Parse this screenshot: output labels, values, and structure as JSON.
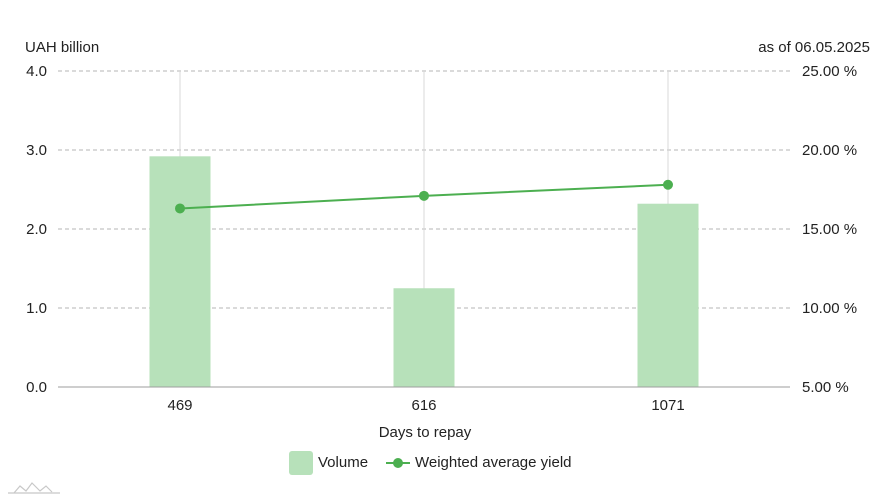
{
  "chart_data": {
    "type": "bar",
    "left_axis_unit": "UAH billion",
    "as_of": "as of 06.05.2025",
    "xlabel": "Days to repay",
    "categories": [
      "469",
      "616",
      "1071"
    ],
    "y_left": {
      "lim": [
        0,
        4
      ],
      "ticks": [
        0,
        1,
        2,
        3,
        4
      ],
      "tick_labels": [
        "0.0",
        "1.0",
        "2.0",
        "3.0",
        "4.0"
      ]
    },
    "y_right": {
      "lim": [
        5,
        25
      ],
      "ticks": [
        5,
        10,
        15,
        20,
        25
      ],
      "tick_labels": [
        "5.00 %",
        "10.00 %",
        "15.00 %",
        "20.00 %",
        "25.00 %"
      ]
    },
    "series": [
      {
        "name": "Volume",
        "kind": "bar",
        "axis": "left",
        "color": "#b7e1ba",
        "values": [
          2.92,
          1.25,
          2.32
        ]
      },
      {
        "name": "Weighted average yield",
        "kind": "line",
        "axis": "right",
        "color": "#4caf50",
        "values": [
          16.3,
          17.1,
          17.8
        ]
      }
    ],
    "grid": true,
    "legend_position": "bottom"
  }
}
